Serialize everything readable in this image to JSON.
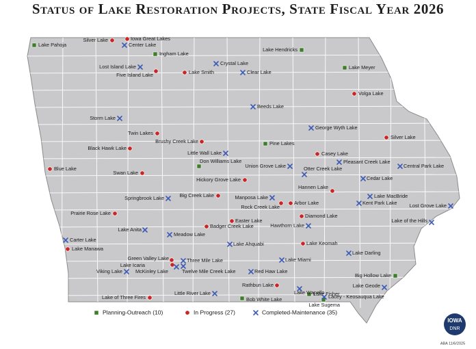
{
  "title": "Status of Lake Restoration Projects, State Fiscal Year 2026",
  "groups": [
    {
      "label": "Planning-Outreach (10)",
      "marker": "square",
      "color": "#3f7d2a",
      "lakes": [
        "Lake Pahoja",
        "Ingham Lake",
        "Lake Hendricks",
        "Lake Meyer",
        "Pine Lakes",
        "Don Williams Lake",
        "Big Hollow Lake",
        "Lake Fisher",
        "Bob White Lake",
        "Lake Sugema"
      ]
    },
    {
      "label": "In Progress (27)",
      "marker": "circle",
      "color": "#c62828",
      "lakes": [
        "Silver Lake",
        "Iowa Great Lakes",
        "Five Island Lake",
        "Lake Smith",
        "Volga Lake",
        "Twin Lakes",
        "Silver Lake",
        "Brushy Creek Lake",
        "Black Hawk Lake",
        "Casey Lake",
        "Blue Lake",
        "Swan Lake",
        "Hickory Grove Lake",
        "Hannen Lake",
        "Big Creek Lake",
        "Rock Creek Lake",
        "Arbor Lake",
        "Prairie Rose Lake",
        "Diamond Lake",
        "Easter Lake",
        "Badger Creek Lake",
        "Lake Keomah",
        "Lake Manawa",
        "Green Valley Lake",
        "Lake Icaria",
        "Rathbun Lake",
        "Lake of Three Fires"
      ]
    },
    {
      "label": "Completed-Maintenance (35)",
      "marker": "cross",
      "color": "#3b5bb5",
      "lakes": [
        "Center Lake",
        "Crystal Lake",
        "Lost Island Lake",
        "Clear Lake",
        "Beeds Lake",
        "Storm Lake",
        "George Wyth Lake",
        "Little Wall Lake",
        "Pleasant Creek Lake",
        "Union Grove Lake",
        "Central Park Lake",
        "Otter Creek Lake",
        "Cedar Lake",
        "Springbrook Lake",
        "Manposa Lake",
        "Lake MacBride",
        "Kent Park Lake",
        "Lost Grove Lake",
        "Lake of the Hills",
        "Hawthorn Lake",
        "Lake Anita",
        "Meadow Lake",
        "Carter Lake",
        "Lake Ahquabi",
        "Lake Darling",
        "Three Mile Lake",
        "Lake Miami",
        "McKinley Lake",
        "Twelve Mile Creek Lake",
        "Red Haw Lake",
        "Viking Lake",
        "Lake Wapello",
        "Lake Geode",
        "Little River Lake",
        "Lacey - Keosauqua Lake"
      ]
    }
  ],
  "logo": {
    "line1": "IOWA",
    "line2": "DNR"
  },
  "footer": "ABA 11/6/2025"
}
